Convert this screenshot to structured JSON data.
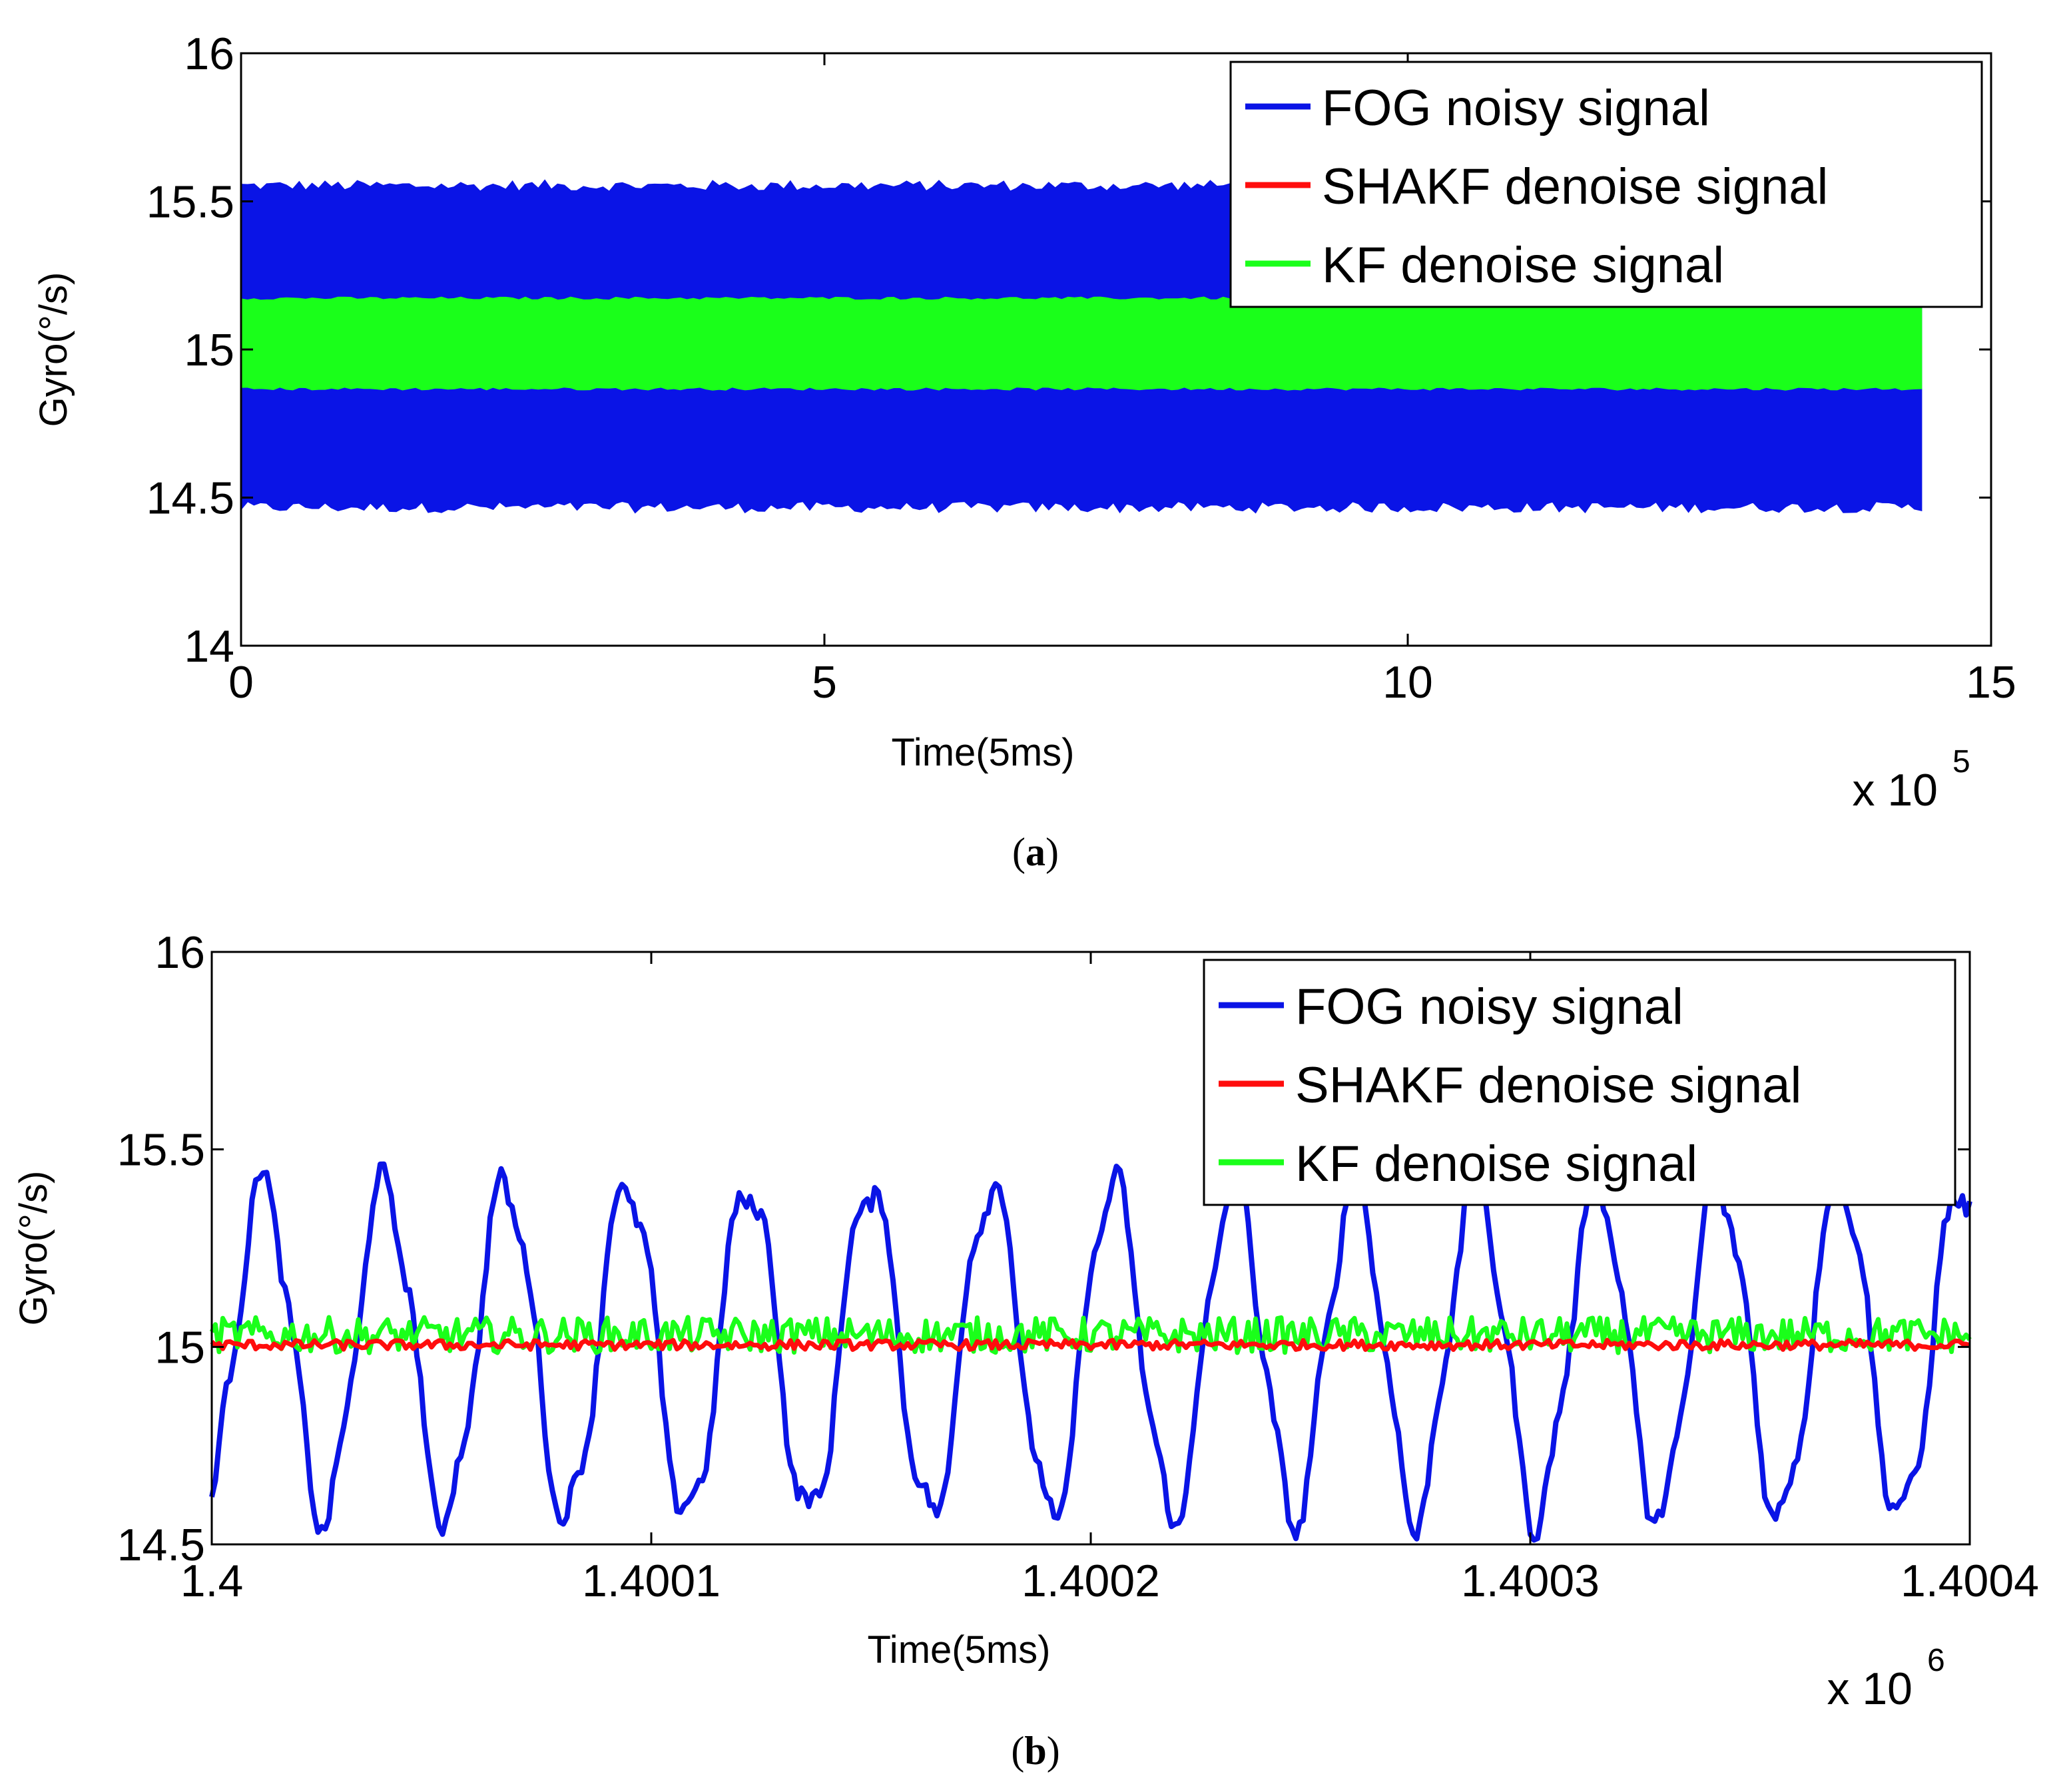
{
  "colors": {
    "noisy": "#0a14e6",
    "shakf": "#ff0d0d",
    "kf": "#1aff1a"
  },
  "chart_data": [
    {
      "id": "a",
      "type": "line",
      "caption_open": "(",
      "caption_letter": "a",
      "caption_close": ")",
      "xlabel": "Time(5ms)",
      "ylabel": "Gyro(°/s)",
      "x_multiplier_base": "x 10",
      "x_multiplier_exp": "5",
      "xlim": [
        0,
        15
      ],
      "ylim": [
        14,
        16
      ],
      "xticks": [
        0,
        5,
        10,
        15
      ],
      "xtick_labels": [
        "0",
        "5",
        "10",
        "15"
      ],
      "yticks": [
        14,
        14.5,
        15,
        15.5,
        16
      ],
      "ytick_labels": [
        "14",
        "14.5",
        "15",
        "15.5",
        "16"
      ],
      "data_x_end": 14.4,
      "series": [
        {
          "name": "FOG noisy signal",
          "color_key": "noisy",
          "band": [
            14.47,
            15.55
          ]
        },
        {
          "name": "SHAKF denoise signal",
          "color_key": "shakf",
          "band": [
            14.99,
            15.01
          ]
        },
        {
          "name": "KF denoise signal",
          "color_key": "kf",
          "band": [
            14.87,
            15.17
          ]
        }
      ],
      "legend": [
        "FOG noisy signal",
        "SHAKF denoise signal",
        "KF denoise signal"
      ],
      "legend_position": "top-right"
    },
    {
      "id": "b",
      "type": "line",
      "caption_open": "(",
      "caption_letter": "b",
      "caption_close": ")",
      "xlabel": "Time(5ms)",
      "ylabel": "Gyro(°/s)",
      "x_multiplier_base": "x 10",
      "x_multiplier_exp": "6",
      "xlim": [
        1.4,
        1.4004
      ],
      "ylim": [
        14.5,
        16
      ],
      "xticks": [
        1.4,
        1.4001,
        1.4002,
        1.4003,
        1.4004
      ],
      "xtick_labels": [
        "1.4",
        "1.4001",
        "1.4002",
        "1.4003",
        "1.4004"
      ],
      "yticks": [
        14.5,
        15,
        15.5,
        16
      ],
      "ytick_labels": [
        "14.5",
        "15",
        "15.5",
        "16"
      ],
      "series": [
        {
          "name": "FOG noisy signal",
          "color_key": "noisy",
          "period_x": 2.76e-05,
          "amplitude": 0.42,
          "center": 14.99,
          "samples": 480
        },
        {
          "name": "SHAKF denoise signal",
          "color_key": "shakf",
          "center": 15.005,
          "noise_amplitude": 0.012,
          "samples": 480
        },
        {
          "name": "KF denoise signal",
          "color_key": "kf",
          "center": 15.03,
          "noise_amplitude": 0.045,
          "samples": 480
        }
      ],
      "legend": [
        "FOG noisy signal",
        "SHAKF denoise signal",
        "KF denoise signal"
      ],
      "legend_position": "top-right"
    }
  ]
}
